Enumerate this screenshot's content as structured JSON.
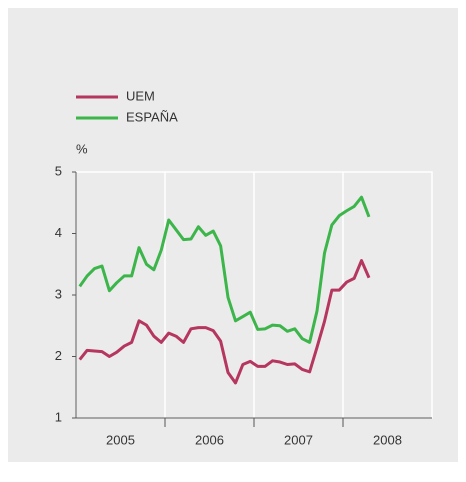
{
  "chart_data": {
    "type": "line",
    "y_unit": "%",
    "x": [
      2005.042,
      2005.125,
      2005.208,
      2005.292,
      2005.375,
      2005.458,
      2005.542,
      2005.625,
      2005.708,
      2005.792,
      2005.875,
      2005.958,
      2006.042,
      2006.125,
      2006.208,
      2006.292,
      2006.375,
      2006.458,
      2006.542,
      2006.625,
      2006.708,
      2006.792,
      2006.875,
      2006.958,
      2007.042,
      2007.125,
      2007.208,
      2007.292,
      2007.375,
      2007.458,
      2007.542,
      2007.625,
      2007.708,
      2007.792,
      2007.875,
      2007.958,
      2008.042,
      2008.125,
      2008.208,
      2008.292
    ],
    "series": [
      {
        "name": "UEM",
        "color": "#b5365e",
        "values": [
          1.95,
          2.1,
          2.09,
          2.08,
          2.0,
          2.07,
          2.17,
          2.23,
          2.58,
          2.51,
          2.33,
          2.23,
          2.38,
          2.33,
          2.23,
          2.45,
          2.47,
          2.47,
          2.42,
          2.25,
          1.74,
          1.57,
          1.87,
          1.92,
          1.84,
          1.84,
          1.93,
          1.91,
          1.87,
          1.88,
          1.79,
          1.75,
          2.15,
          2.57,
          3.08,
          3.08,
          3.21,
          3.27,
          3.56,
          3.28
        ]
      },
      {
        "name": "ESPAÑA",
        "color": "#3cb54a",
        "values": [
          3.14,
          3.31,
          3.43,
          3.47,
          3.07,
          3.2,
          3.31,
          3.31,
          3.77,
          3.5,
          3.41,
          3.73,
          4.22,
          4.06,
          3.9,
          3.91,
          4.11,
          3.97,
          4.04,
          3.8,
          2.96,
          2.58,
          2.65,
          2.72,
          2.44,
          2.45,
          2.51,
          2.5,
          2.41,
          2.45,
          2.29,
          2.23,
          2.74,
          3.68,
          4.14,
          4.29,
          4.37,
          4.44,
          4.59,
          4.27
        ]
      }
    ],
    "xlim": [
      2005,
      2009
    ],
    "xticks": [
      {
        "value": 2005.5,
        "label": "2005"
      },
      {
        "value": 2006.5,
        "label": "2006"
      },
      {
        "value": 2007.5,
        "label": "2007"
      },
      {
        "value": 2008.5,
        "label": "2008"
      }
    ],
    "xgrid": [
      2006,
      2007,
      2008
    ],
    "ylim": [
      1,
      5
    ],
    "yticks": [
      1,
      2,
      3,
      4,
      5
    ]
  }
}
